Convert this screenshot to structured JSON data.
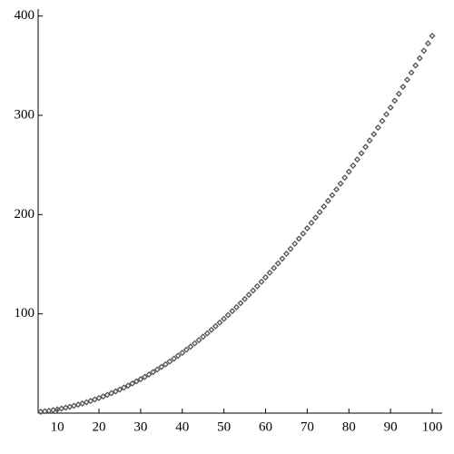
{
  "chart_data": {
    "type": "scatter",
    "x": [
      6,
      7,
      8,
      9,
      10,
      11,
      12,
      13,
      14,
      15,
      16,
      17,
      18,
      19,
      20,
      21,
      22,
      23,
      24,
      25,
      26,
      27,
      28,
      29,
      30,
      31,
      32,
      33,
      34,
      35,
      36,
      37,
      38,
      39,
      40,
      41,
      42,
      43,
      44,
      45,
      46,
      47,
      48,
      49,
      50,
      51,
      52,
      53,
      54,
      55,
      56,
      57,
      58,
      59,
      60,
      61,
      62,
      63,
      64,
      65,
      66,
      67,
      68,
      69,
      70,
      71,
      72,
      73,
      74,
      75,
      76,
      77,
      78,
      79,
      80,
      81,
      82,
      83,
      84,
      85,
      86,
      87,
      88,
      89,
      90,
      91,
      92,
      93,
      94,
      95,
      96,
      97,
      98,
      99,
      100
    ],
    "values": [
      1.4,
      1.9,
      2.4,
      3.1,
      3.8,
      4.6,
      5.5,
      6.4,
      7.4,
      8.6,
      9.7,
      11.0,
      12.3,
      13.7,
      15.2,
      16.8,
      18.4,
      20.1,
      21.9,
      23.8,
      25.7,
      27.7,
      29.8,
      32.0,
      34.2,
      36.5,
      38.9,
      41.4,
      43.9,
      46.6,
      49.2,
      52.0,
      54.9,
      57.8,
      60.8,
      63.9,
      67.0,
      70.3,
      73.6,
      77.0,
      80.4,
      83.9,
      87.6,
      91.2,
      95.0,
      98.8,
      102.8,
      106.7,
      110.8,
      115.0,
      119.2,
      123.5,
      127.8,
      132.3,
      136.8,
      141.4,
      146.1,
      150.8,
      155.6,
      160.6,
      165.5,
      170.6,
      175.7,
      180.9,
      186.2,
      191.6,
      197.0,
      202.5,
      208.1,
      213.8,
      219.5,
      225.3,
      231.2,
      237.2,
      243.2,
      249.3,
      255.5,
      261.8,
      268.1,
      274.6,
      281.0,
      287.6,
      294.3,
      301.0,
      307.8,
      314.7,
      321.6,
      328.7,
      335.8,
      343.0,
      350.2,
      357.5,
      365.0,
      372.4,
      380.0
    ],
    "color": "#555555",
    "xlim": [
      5.4,
      102.4
    ],
    "ylim": [
      0,
      407
    ],
    "xticks": [
      10,
      20,
      30,
      40,
      50,
      60,
      70,
      80,
      90,
      100
    ],
    "yticks": [
      100,
      200,
      300,
      400
    ]
  }
}
